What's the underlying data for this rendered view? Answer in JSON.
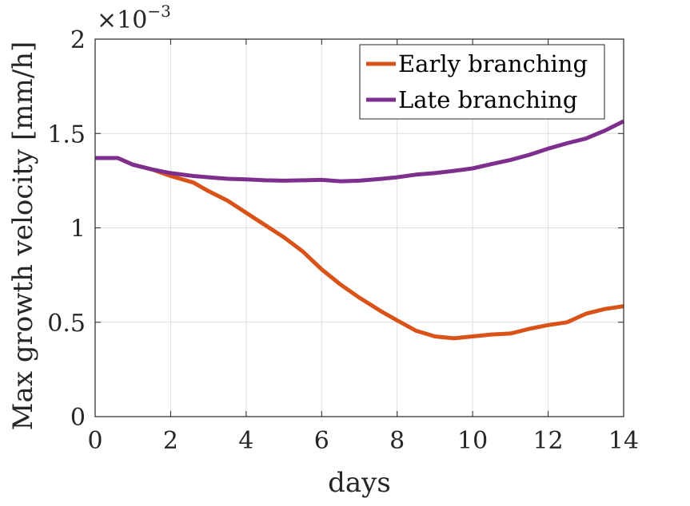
{
  "chart_data": {
    "type": "line",
    "title": "",
    "xlabel": "days",
    "ylabel": "Max growth velocity [mm/h]",
    "xlim": [
      0,
      14
    ],
    "ylim": [
      0,
      2
    ],
    "x_ticks": [
      0,
      2,
      4,
      6,
      8,
      10,
      12,
      14
    ],
    "y_ticks": [
      0,
      0.5,
      1,
      1.5,
      2
    ],
    "y_tick_labels": [
      "0",
      "0.5",
      "1",
      "1.5",
      "2"
    ],
    "y_exponent_label": "×10",
    "y_exponent": "−3",
    "grid": true,
    "legend_position": "top-right",
    "series": [
      {
        "name": "Early branching",
        "color": "#D95319",
        "x": [
          0,
          0.6,
          1.0,
          1.5,
          2.0,
          2.6,
          3.0,
          3.5,
          4.0,
          4.5,
          5.0,
          5.5,
          6.0,
          6.5,
          7.0,
          7.6,
          8.0,
          8.5,
          9.0,
          9.5,
          10.0,
          10.5,
          11.0,
          11.5,
          12.0,
          12.5,
          13.0,
          13.5,
          14.0
        ],
        "y": [
          1.37,
          1.37,
          1.335,
          1.31,
          1.275,
          1.24,
          1.195,
          1.145,
          1.08,
          1.015,
          0.95,
          0.875,
          0.78,
          0.7,
          0.63,
          0.555,
          0.51,
          0.455,
          0.425,
          0.415,
          0.425,
          0.435,
          0.44,
          0.465,
          0.485,
          0.5,
          0.545,
          0.57,
          0.585
        ]
      },
      {
        "name": "Late branching",
        "color": "#7E2F8E",
        "x": [
          0,
          0.6,
          1.0,
          1.5,
          2.0,
          2.6,
          3.0,
          3.5,
          4.0,
          4.5,
          5.0,
          5.5,
          6.0,
          6.5,
          7.0,
          7.6,
          8.0,
          8.5,
          9.0,
          9.5,
          10.0,
          10.5,
          11.0,
          11.5,
          12.0,
          12.5,
          13.0,
          13.5,
          14.0
        ],
        "y": [
          1.37,
          1.37,
          1.335,
          1.31,
          1.29,
          1.275,
          1.268,
          1.26,
          1.257,
          1.252,
          1.25,
          1.252,
          1.254,
          1.247,
          1.25,
          1.26,
          1.268,
          1.282,
          1.29,
          1.302,
          1.315,
          1.338,
          1.36,
          1.387,
          1.42,
          1.448,
          1.473,
          1.515,
          1.565
        ]
      }
    ]
  }
}
